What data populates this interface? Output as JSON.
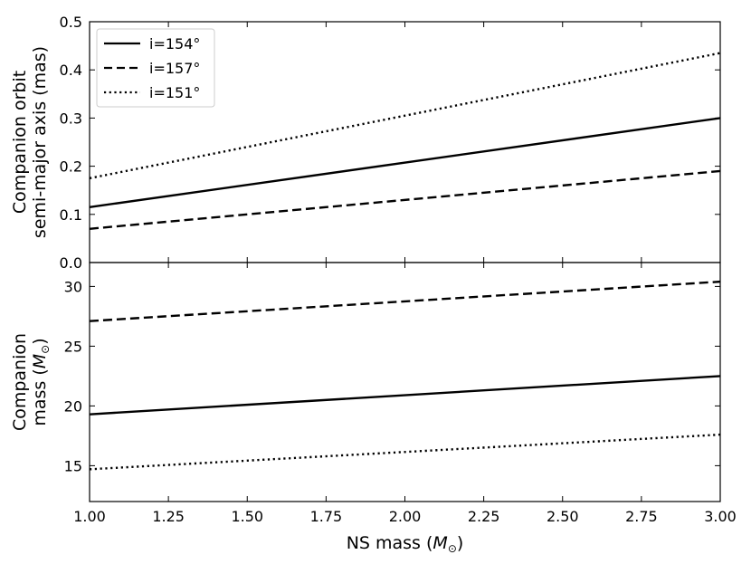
{
  "chart_data": [
    {
      "type": "line",
      "x": [
        1.0,
        3.0
      ],
      "xlim": [
        1.0,
        3.0
      ],
      "xticks": [
        "1.00",
        "1.25",
        "1.50",
        "1.75",
        "2.00",
        "2.25",
        "2.50",
        "2.75",
        "3.00"
      ],
      "ylim": [
        0.0,
        0.5
      ],
      "yticks": [
        "0.0",
        "0.1",
        "0.2",
        "0.3",
        "0.4",
        "0.5"
      ],
      "ylabel_line1": "Companion orbit",
      "ylabel_line2": "semi-major axis (mas)",
      "legend_position": "top-left",
      "series": [
        {
          "name": "i=154°",
          "style": "solid",
          "values": [
            0.115,
            0.3
          ]
        },
        {
          "name": "i=157°",
          "style": "dashed",
          "values": [
            0.07,
            0.19
          ]
        },
        {
          "name": "i=151°",
          "style": "dotted",
          "values": [
            0.175,
            0.435
          ]
        }
      ]
    },
    {
      "type": "line",
      "x": [
        1.0,
        3.0
      ],
      "xlim": [
        1.0,
        3.0
      ],
      "xticks": [
        "1.00",
        "1.25",
        "1.50",
        "1.75",
        "2.00",
        "2.25",
        "2.50",
        "2.75",
        "3.00"
      ],
      "ylim": [
        12.0,
        32.0
      ],
      "yticks": [
        "15",
        "20",
        "25",
        "30"
      ],
      "ylabel_line1": "Companion",
      "ylabel_line2": "mass (M⊙)",
      "xlabel": "NS mass (M⊙)",
      "series": [
        {
          "style": "solid",
          "values": [
            19.3,
            22.5
          ]
        },
        {
          "style": "dashed",
          "values": [
            27.1,
            30.4
          ]
        },
        {
          "style": "dotted",
          "values": [
            14.7,
            17.6
          ]
        }
      ]
    }
  ],
  "colors": {
    "line": "#000000",
    "background": "#ffffff"
  }
}
